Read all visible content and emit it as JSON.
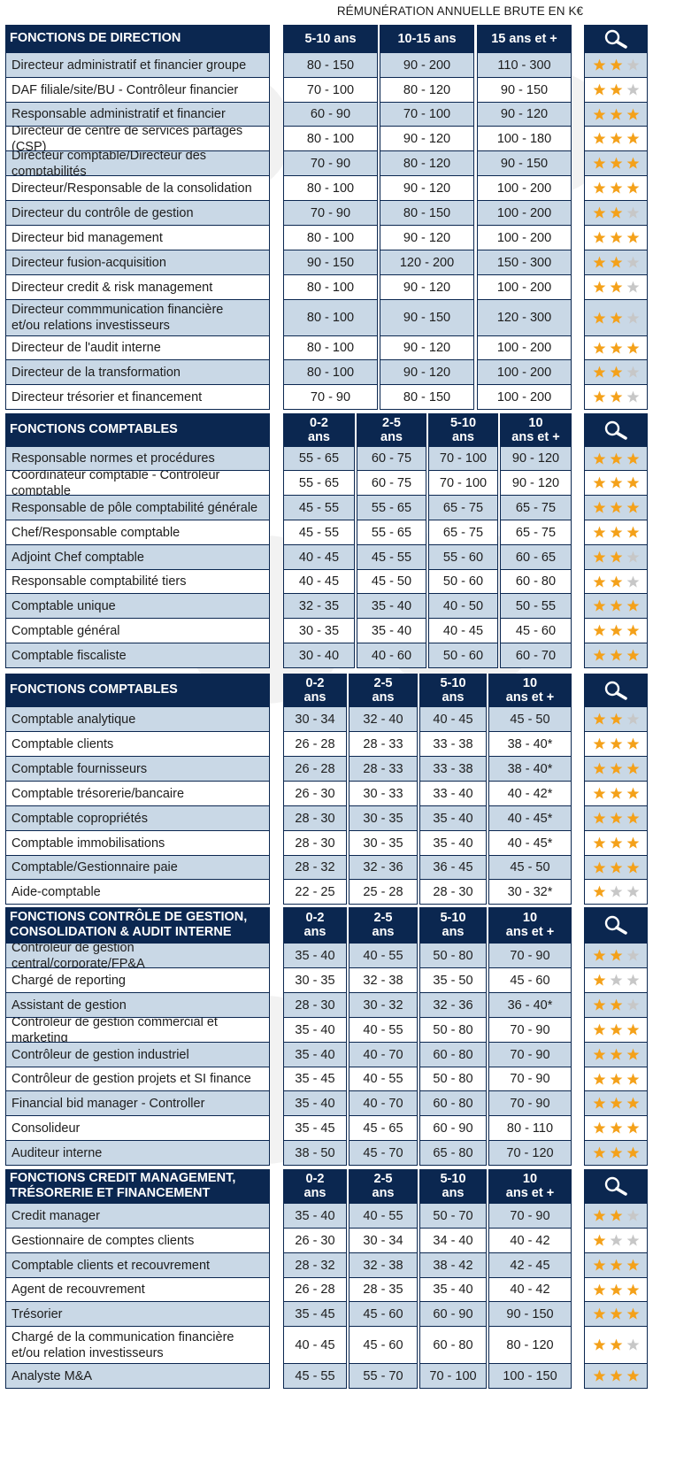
{
  "caption": "RÉMUNÉRATION ANNUELLE BRUTE EN K€",
  "colors": {
    "header": "#0b2750",
    "row_shaded": "#c9d8e6",
    "star_on": "#f4a11a",
    "star_off": "#c7c7c7"
  },
  "icons": {
    "header_search": "magnifier-icon",
    "rating": "star-icon"
  },
  "sections": [
    {
      "title": [
        "FONCTIONS DE DIRECTION"
      ],
      "columns": [
        [
          "5-10 ans"
        ],
        [
          "10-15 ans"
        ],
        [
          "15 ans et +"
        ]
      ],
      "rows": [
        {
          "name": [
            "Directeur administratif et financier groupe"
          ],
          "values": [
            "80 - 150",
            "90 - 200",
            "110 - 300"
          ],
          "stars": 2
        },
        {
          "name": [
            "DAF filiale/site/BU - Contrôleur financier"
          ],
          "values": [
            "70 - 100",
            "80 - 120",
            "90 - 150"
          ],
          "stars": 2
        },
        {
          "name": [
            "Responsable administratif et financier"
          ],
          "values": [
            "60 - 90",
            "70 - 100",
            "90 - 120"
          ],
          "stars": 3
        },
        {
          "name": [
            "Directeur de centre de services partagés (CSP)"
          ],
          "values": [
            "80 - 100",
            "90 - 120",
            "100 - 180"
          ],
          "stars": 3
        },
        {
          "name": [
            "Directeur comptable/Directeur des comptabilités"
          ],
          "values": [
            "70 - 90",
            "80 - 120",
            "90 - 150"
          ],
          "stars": 3
        },
        {
          "name": [
            "Directeur/Responsable de la consolidation"
          ],
          "values": [
            "80 - 100",
            "90 - 120",
            "100 - 200"
          ],
          "stars": 3
        },
        {
          "name": [
            "Directeur du contrôle de gestion"
          ],
          "values": [
            "70 - 90",
            "80 - 150",
            "100 - 200"
          ],
          "stars": 2
        },
        {
          "name": [
            "Directeur bid management"
          ],
          "values": [
            "80 - 100",
            "90 - 120",
            "100 - 200"
          ],
          "stars": 3
        },
        {
          "name": [
            "Directeur fusion-acquisition"
          ],
          "values": [
            "90 - 150",
            "120 - 200",
            "150 - 300"
          ],
          "stars": 2
        },
        {
          "name": [
            "Directeur credit & risk management"
          ],
          "values": [
            "80 - 100",
            "90 - 120",
            "100 - 200"
          ],
          "stars": 2
        },
        {
          "name": [
            "Directeur commmunication financière",
            "et/ou relations investisseurs"
          ],
          "values": [
            "80 - 100",
            "90 - 150",
            "120 - 300"
          ],
          "stars": 2
        },
        {
          "name": [
            "Directeur de l'audit interne"
          ],
          "values": [
            "80 - 100",
            "90 - 120",
            "100 - 200"
          ],
          "stars": 3
        },
        {
          "name": [
            "Directeur de la transformation"
          ],
          "values": [
            "80 - 100",
            "90 - 120",
            "100 - 200"
          ],
          "stars": 2
        },
        {
          "name": [
            "Directeur trésorier et financement"
          ],
          "values": [
            "70 - 90",
            "80 - 150",
            "100 - 200"
          ],
          "stars": 2
        }
      ]
    },
    {
      "title": [
        "FONCTIONS COMPTABLES"
      ],
      "columns": [
        [
          "0-2",
          "ans"
        ],
        [
          "2-5",
          "ans"
        ],
        [
          "5-10",
          "ans"
        ],
        [
          "10",
          "ans et +"
        ]
      ],
      "rows": [
        {
          "name": [
            "Responsable normes et procédures"
          ],
          "values": [
            "55 - 65",
            "60 - 75",
            "70 - 100",
            "90 - 120"
          ],
          "stars": 3
        },
        {
          "name": [
            "Coordinateur comptable - Contrôleur comptable"
          ],
          "values": [
            "55 - 65",
            "60 - 75",
            "70 - 100",
            "90 - 120"
          ],
          "stars": 3
        },
        {
          "name": [
            "Responsable de pôle comptabilité générale"
          ],
          "values": [
            "45 - 55",
            "55 - 65",
            "65 - 75",
            "65 - 75"
          ],
          "stars": 3
        },
        {
          "name": [
            "Chef/Responsable comptable"
          ],
          "values": [
            "45 - 55",
            "55 - 65",
            "65 - 75",
            "65 - 75"
          ],
          "stars": 3
        },
        {
          "name": [
            "Adjoint Chef comptable"
          ],
          "values": [
            "40 - 45",
            "45 - 55",
            "55 - 60",
            "60 - 65"
          ],
          "stars": 2
        },
        {
          "name": [
            "Responsable comptabilité tiers"
          ],
          "values": [
            "40 - 45",
            "45 - 50",
            "50 - 60",
            "60 - 80"
          ],
          "stars": 2
        },
        {
          "name": [
            "Comptable unique"
          ],
          "values": [
            "32 - 35",
            "35 - 40",
            "40 - 50",
            "50 - 55"
          ],
          "stars": 3
        },
        {
          "name": [
            "Comptable général"
          ],
          "values": [
            "30 - 35",
            "35 - 40",
            "40 - 45",
            "45 - 60"
          ],
          "stars": 3
        },
        {
          "name": [
            "Comptable fiscaliste"
          ],
          "values": [
            "30 - 40",
            "40 - 60",
            "50 - 60",
            "60 - 70"
          ],
          "stars": 3
        }
      ]
    },
    {
      "title": [
        "FONCTIONS COMPTABLES"
      ],
      "columns": [
        [
          "0-2",
          "ans"
        ],
        [
          "2-5",
          "ans"
        ],
        [
          "5-10",
          "ans"
        ],
        [
          "10",
          "ans et +"
        ]
      ],
      "rows": [
        {
          "name": [
            "Comptable analytique"
          ],
          "values": [
            "30 - 34",
            "32 - 40",
            "40 - 45",
            "45 - 50"
          ],
          "stars": 2
        },
        {
          "name": [
            "Comptable clients"
          ],
          "values": [
            "26 - 28",
            "28 - 33",
            "33 - 38",
            "38 - 40*"
          ],
          "stars": 3
        },
        {
          "name": [
            "Comptable fournisseurs"
          ],
          "values": [
            "26 - 28",
            "28 - 33",
            "33 - 38",
            "38 - 40*"
          ],
          "stars": 3
        },
        {
          "name": [
            "Comptable trésorerie/bancaire"
          ],
          "values": [
            "26 - 30",
            "30 - 33",
            "33 - 40",
            "40 - 42*"
          ],
          "stars": 3
        },
        {
          "name": [
            "Comptable copropriétés"
          ],
          "values": [
            "28 - 30",
            "30 - 35",
            "35 - 40",
            "40 - 45*"
          ],
          "stars": 3
        },
        {
          "name": [
            "Comptable immobilisations"
          ],
          "values": [
            "28 - 30",
            "30 - 35",
            "35 - 40",
            "40 - 45*"
          ],
          "stars": 3
        },
        {
          "name": [
            "Comptable/Gestionnaire paie"
          ],
          "values": [
            "28 - 32",
            "32 - 36",
            "36 - 45",
            "45 - 50"
          ],
          "stars": 3
        },
        {
          "name": [
            "Aide-comptable"
          ],
          "values": [
            "22 - 25",
            "25 - 28",
            "28 - 30",
            "30 - 32*"
          ],
          "stars": 1
        }
      ]
    },
    {
      "title": [
        "FONCTIONS CONTRÔLE DE GESTION,",
        "CONSOLIDATION & AUDIT INTERNE"
      ],
      "columns": [
        [
          "0-2",
          "ans"
        ],
        [
          "2-5",
          "ans"
        ],
        [
          "5-10",
          "ans"
        ],
        [
          "10",
          "ans et +"
        ]
      ],
      "rows": [
        {
          "name": [
            "Contrôleur de gestion central/corporate/FP&A"
          ],
          "values": [
            "35 - 40",
            "40 - 55",
            "50 - 80",
            "70 - 90"
          ],
          "stars": 2
        },
        {
          "name": [
            "Chargé de reporting"
          ],
          "values": [
            "30 - 35",
            "32 - 38",
            "35 - 50",
            "45 - 60"
          ],
          "stars": 1
        },
        {
          "name": [
            "Assistant de gestion"
          ],
          "values": [
            "28 - 30",
            "30 - 32",
            "32 - 36",
            "36 - 40*"
          ],
          "stars": 2
        },
        {
          "name": [
            "Contrôleur de gestion commercial et marketing"
          ],
          "values": [
            "35 - 40",
            "40 - 55",
            "50 - 80",
            "70 - 90"
          ],
          "stars": 3
        },
        {
          "name": [
            "Contrôleur de gestion industriel"
          ],
          "values": [
            "35 - 40",
            "40 - 70",
            "60 - 80",
            "70 - 90"
          ],
          "stars": 3
        },
        {
          "name": [
            "Contrôleur de gestion projets et SI finance"
          ],
          "values": [
            "35 - 45",
            "40 - 55",
            "50 - 80",
            "70 - 90"
          ],
          "stars": 3
        },
        {
          "name": [
            "Financial bid manager - Controller"
          ],
          "values": [
            "35 - 40",
            "40 - 70",
            "60 - 80",
            "70 - 90"
          ],
          "stars": 3
        },
        {
          "name": [
            "Consolideur"
          ],
          "values": [
            "35 - 45",
            "45 - 65",
            "60 - 90",
            "80 - 110"
          ],
          "stars": 3
        },
        {
          "name": [
            "Auditeur interne"
          ],
          "values": [
            "38 - 50",
            "45 - 70",
            "65 - 80",
            "70 - 120"
          ],
          "stars": 3
        }
      ]
    },
    {
      "title": [
        "FONCTIONS CREDIT MANAGEMENT,",
        "TRÉSORERIE ET FINANCEMENT"
      ],
      "columns": [
        [
          "0-2",
          "ans"
        ],
        [
          "2-5",
          "ans"
        ],
        [
          "5-10",
          "ans"
        ],
        [
          "10",
          "ans et +"
        ]
      ],
      "rows": [
        {
          "name": [
            "Credit manager"
          ],
          "values": [
            "35 - 40",
            "40 - 55",
            "50 - 70",
            "70 - 90"
          ],
          "stars": 2
        },
        {
          "name": [
            "Gestionnaire de comptes clients"
          ],
          "values": [
            "26 - 30",
            "30 - 34",
            "34 - 40",
            "40 - 42"
          ],
          "stars": 1
        },
        {
          "name": [
            "Comptable clients et recouvrement"
          ],
          "values": [
            "28 - 32",
            "32 - 38",
            "38 - 42",
            "42 - 45"
          ],
          "stars": 3
        },
        {
          "name": [
            "Agent de recouvrement"
          ],
          "values": [
            "26 - 28",
            "28 - 35",
            "35 - 40",
            "40 - 42"
          ],
          "stars": 3
        },
        {
          "name": [
            "Trésorier"
          ],
          "values": [
            "35 - 45",
            "45 - 60",
            "60 - 90",
            "90 - 150"
          ],
          "stars": 3
        },
        {
          "name": [
            "Chargé de la communication financière",
            "et/ou relation investisseurs"
          ],
          "values": [
            "40 - 45",
            "45 - 60",
            "60 - 80",
            "80 - 120"
          ],
          "stars": 2
        },
        {
          "name": [
            "Analyste M&A"
          ],
          "values": [
            "45 - 55",
            "55 - 70",
            "70 - 100",
            "100 - 150"
          ],
          "stars": 3
        }
      ]
    }
  ]
}
